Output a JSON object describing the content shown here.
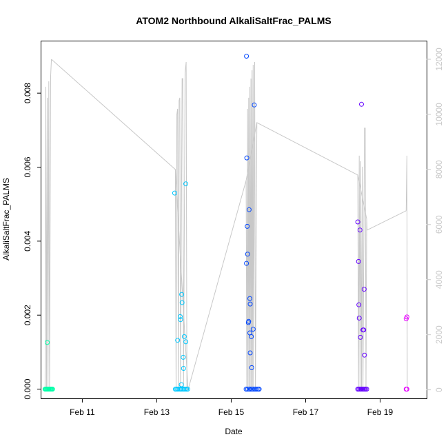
{
  "chart_data": {
    "type": "scatter",
    "title": "ATOM2 Northbound AlkaliSaltFrac_PALMS",
    "xlabel": "Date",
    "ylabel": "AlkaliSaltFrac_PALMS",
    "x_ticks": [
      "Feb 11",
      "Feb 13",
      "Feb 15",
      "Feb 17",
      "Feb 19"
    ],
    "y_ticks": [
      "0.000",
      "0.002",
      "0.004",
      "0.006",
      "0.008"
    ],
    "y2_ticks": [
      "0",
      "2000",
      "4000",
      "6000",
      "8000",
      "10000",
      "12000"
    ],
    "xlim_days": [
      9.9,
      20.25
    ],
    "ylim": [
      -0.00025,
      0.0094
    ],
    "y2lim": [
      -310,
      12650
    ],
    "grid": false,
    "colors": {
      "axis": "#000000",
      "altitude_line": "#c8c8c8",
      "right_axis": "#c8c8c8"
    },
    "flights": [
      {
        "day_start": 10.0,
        "day_end": 10.2,
        "color": "#00ffa8",
        "zero_x": [
          10.0,
          10.02,
          10.04,
          10.06,
          10.08,
          10.1,
          10.12,
          10.14,
          10.16,
          10.18,
          10.2
        ],
        "nonzero": [
          [
            10.06,
            0.00126
          ]
        ],
        "altitude": [
          [
            10.0,
            0
          ],
          [
            10.02,
            11000
          ],
          [
            10.04,
            0
          ],
          [
            10.06,
            10600
          ],
          [
            10.08,
            0
          ],
          [
            10.1,
            11200
          ],
          [
            10.12,
            0
          ],
          [
            10.15,
            11400
          ],
          [
            10.17,
            12000
          ]
        ]
      },
      {
        "day_start": 13.5,
        "day_end": 13.85,
        "color": "#00c8ff",
        "zero_x": [
          13.5,
          13.53,
          13.56,
          13.6,
          13.63,
          13.66,
          13.7,
          13.73,
          13.76,
          13.8,
          13.83
        ],
        "nonzero": [
          [
            13.48,
            0.0053
          ],
          [
            13.56,
            0.00132
          ],
          [
            13.63,
            0.00196
          ],
          [
            13.64,
            0.00188
          ],
          [
            13.67,
            0.00256
          ],
          [
            13.68,
            0.00234
          ],
          [
            13.71,
            0.00086
          ],
          [
            13.72,
            0.00056
          ],
          [
            13.74,
            0.00142
          ],
          [
            13.78,
            0.00128
          ],
          [
            13.78,
            0.00555
          ],
          [
            13.66,
            0.00012
          ]
        ],
        "altitude": [
          [
            13.5,
            8000
          ],
          [
            13.52,
            0
          ],
          [
            13.54,
            10000
          ],
          [
            13.56,
            10200
          ],
          [
            13.58,
            0
          ],
          [
            13.6,
            10500
          ],
          [
            13.62,
            10600
          ],
          [
            13.64,
            0
          ],
          [
            13.68,
            11300
          ],
          [
            13.7,
            11300
          ],
          [
            13.72,
            0
          ],
          [
            13.76,
            11500
          ],
          [
            13.79,
            11900
          ],
          [
            13.81,
            0
          ],
          [
            13.84,
            0
          ]
        ]
      },
      {
        "day_start": 15.4,
        "day_end": 15.75,
        "color": "#0046ff",
        "zero_x": [
          15.4,
          15.44,
          15.48,
          15.52,
          15.56,
          15.6,
          15.64,
          15.68,
          15.72,
          15.75
        ],
        "nonzero": [
          [
            15.41,
            0.009
          ],
          [
            15.42,
            0.00625
          ],
          [
            15.43,
            0.0044
          ],
          [
            15.44,
            0.00365
          ],
          [
            15.41,
            0.0034
          ],
          [
            15.48,
            0.00485
          ],
          [
            15.46,
            0.0018
          ],
          [
            15.47,
            0.00183
          ],
          [
            15.5,
            0.00245
          ],
          [
            15.51,
            0.0023
          ],
          [
            15.5,
            0.00152
          ],
          [
            15.54,
            0.00142
          ],
          [
            15.51,
            0.00098
          ],
          [
            15.55,
            0.00058
          ],
          [
            15.59,
            0.00162
          ],
          [
            15.62,
            0.00768
          ]
        ],
        "altitude": [
          [
            15.4,
            7600
          ],
          [
            15.42,
            0
          ],
          [
            15.44,
            10200
          ],
          [
            15.45,
            0
          ],
          [
            15.47,
            10600
          ],
          [
            15.48,
            0
          ],
          [
            15.5,
            11000
          ],
          [
            15.51,
            0
          ],
          [
            15.53,
            11300
          ],
          [
            15.54,
            0
          ],
          [
            15.56,
            11600
          ],
          [
            15.57,
            0
          ],
          [
            15.59,
            11800
          ],
          [
            15.6,
            0
          ],
          [
            15.63,
            11900
          ],
          [
            15.65,
            0
          ],
          [
            15.69,
            9700
          ]
        ]
      },
      {
        "day_start": 18.4,
        "day_end": 18.65,
        "color": "#6400ff",
        "zero_x": [
          18.4,
          18.43,
          18.46,
          18.49,
          18.52,
          18.55,
          18.58,
          18.61,
          18.64
        ],
        "nonzero": [
          [
            18.4,
            0.00452
          ],
          [
            18.42,
            0.00345
          ],
          [
            18.43,
            0.00228
          ],
          [
            18.44,
            0.00192
          ],
          [
            18.46,
            0.0043
          ],
          [
            18.47,
            0.0014
          ],
          [
            18.5,
            0.0077
          ],
          [
            18.54,
            0.0016
          ],
          [
            18.56,
            0.0016
          ],
          [
            18.57,
            0.0027
          ],
          [
            18.58,
            0.00092
          ]
        ],
        "altitude": [
          [
            18.4,
            7800
          ],
          [
            18.42,
            0
          ],
          [
            18.44,
            8500
          ],
          [
            18.46,
            0
          ],
          [
            18.48,
            8300
          ],
          [
            18.5,
            0
          ],
          [
            18.52,
            8100
          ],
          [
            18.54,
            0
          ],
          [
            18.58,
            9500
          ],
          [
            18.6,
            9500
          ],
          [
            18.62,
            0
          ],
          [
            18.64,
            6200
          ]
        ]
      },
      {
        "day_start": 19.7,
        "day_end": 19.75,
        "color": "#e600ff",
        "zero_x": [
          19.7,
          19.72
        ],
        "nonzero": [
          [
            19.7,
            0.0019
          ],
          [
            19.72,
            0.00195
          ]
        ],
        "altitude": [
          [
            19.7,
            6500
          ],
          [
            19.72,
            8500
          ],
          [
            19.73,
            0
          ]
        ]
      }
    ],
    "altitude_transit": [
      [
        10.17,
        12000
      ],
      [
        13.5,
        8000
      ],
      [
        13.84,
        0
      ],
      [
        15.4,
        7600
      ],
      [
        15.69,
        9700
      ],
      [
        18.4,
        7800
      ],
      [
        18.64,
        6200
      ],
      [
        18.65,
        5800
      ],
      [
        19.7,
        6500
      ]
    ]
  }
}
